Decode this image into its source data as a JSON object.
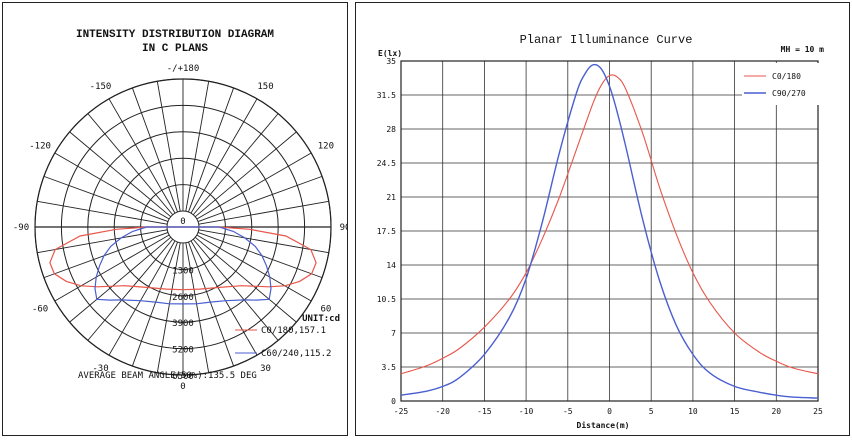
{
  "chart_data": [
    {
      "type": "polar",
      "title_line1": "INTENSITY DISTRIBUTION DIAGRAM",
      "title_line2": "IN C PLANS",
      "angle_labels": [
        {
          "angle": 180,
          "text": "-/+180"
        },
        {
          "angle": -150,
          "text": "-150"
        },
        {
          "angle": 150,
          "text": "150"
        },
        {
          "angle": -120,
          "text": "-120"
        },
        {
          "angle": 120,
          "text": "120"
        },
        {
          "angle": -90,
          "text": "-90"
        },
        {
          "angle": 90,
          "text": "90"
        },
        {
          "angle": -60,
          "text": "-60"
        },
        {
          "angle": 60,
          "text": "60"
        },
        {
          "angle": -30,
          "text": "-30"
        },
        {
          "angle": 30,
          "text": "30"
        },
        {
          "angle": 0,
          "text": "0"
        }
      ],
      "radial_ticks": [
        "0",
        "1300",
        "2600",
        "3900",
        "5200",
        "6500"
      ],
      "radial_values": [
        0,
        1300,
        2600,
        3900,
        5200,
        6500
      ],
      "r_max": 6500,
      "unit_label": "UNIT:cd",
      "legend": [
        {
          "text": "C0/180,157.1",
          "color": "#e8564a"
        },
        {
          "text": "C60/240,115.2",
          "color": "#4a5fd0"
        }
      ],
      "footer": "AVERAGE BEAM ANGLE(50%):135.5 DEG",
      "series": [
        {
          "color": "#e8564a",
          "points": [
            [
              0,
              2300
            ],
            [
              15,
              2380
            ],
            [
              30,
              2650
            ],
            [
              45,
              3300
            ],
            [
              55,
              4350
            ],
            [
              60,
              5000
            ],
            [
              65,
              5550
            ],
            [
              70,
              5950
            ],
            [
              75,
              6000
            ],
            [
              80,
              5600
            ],
            [
              85,
              4300
            ],
            [
              88,
              2500
            ],
            [
              90,
              1000
            ],
            [
              92,
              0
            ]
          ]
        },
        {
          "color": "#4a5fd0",
          "points": [
            [
              0,
              3000
            ],
            [
              10,
              3050
            ],
            [
              20,
              3150
            ],
            [
              30,
              3400
            ],
            [
              40,
              3900
            ],
            [
              45,
              4300
            ],
            [
              50,
              4750
            ],
            [
              55,
              4500
            ],
            [
              60,
              4150
            ],
            [
              65,
              3750
            ],
            [
              70,
              3350
            ],
            [
              75,
              2900
            ],
            [
              80,
              2300
            ],
            [
              85,
              1700
            ],
            [
              90,
              1000
            ],
            [
              95,
              0
            ]
          ]
        }
      ]
    },
    {
      "type": "line",
      "title": "Planar Illuminance Curve",
      "ylabel": "E(lx)",
      "xlabel": "Distance(m)",
      "annotation": "MH = 10 m",
      "x_ticks": [
        -25,
        -20,
        -15,
        -10,
        -5,
        0,
        5,
        10,
        15,
        20,
        25
      ],
      "y_ticks": [
        0,
        3.5,
        7,
        10.5,
        14,
        17.5,
        21,
        24.5,
        28,
        31.5,
        35
      ],
      "xlim": [
        -25,
        25
      ],
      "ylim": [
        0,
        35
      ],
      "legend_position": "top-right",
      "grid": true,
      "series": [
        {
          "name": "C0/180",
          "color": "#e8564a",
          "x": [
            -25,
            -22,
            -20,
            -18,
            -15,
            -12,
            -10,
            -8,
            -6,
            -4,
            -2,
            -1,
            0,
            1,
            2,
            4,
            6,
            8,
            10,
            12,
            15,
            18,
            20,
            22,
            25
          ],
          "y": [
            2.8,
            3.6,
            4.4,
            5.4,
            7.6,
            10.5,
            13.2,
            16.8,
            21.0,
            25.8,
            30.6,
            32.5,
            33.5,
            33.3,
            32.0,
            27.5,
            22.0,
            17.2,
            13.2,
            10.2,
            7.0,
            5.0,
            4.1,
            3.4,
            2.8
          ]
        },
        {
          "name": "C90/270",
          "color": "#4a5fd0",
          "x": [
            -25,
            -22,
            -20,
            -18,
            -15,
            -12,
            -10,
            -8,
            -6,
            -4,
            -3,
            -2,
            -1,
            0,
            1,
            2,
            4,
            6,
            8,
            10,
            12,
            15,
            18,
            20,
            22,
            25
          ],
          "y": [
            0.6,
            1.0,
            1.5,
            2.4,
            4.8,
            8.6,
            12.6,
            18.6,
            25.6,
            31.6,
            33.6,
            34.6,
            34.2,
            32.4,
            29.5,
            26.0,
            18.6,
            12.4,
            7.8,
            4.8,
            2.9,
            1.5,
            0.9,
            0.6,
            0.4,
            0.3
          ]
        }
      ]
    }
  ]
}
